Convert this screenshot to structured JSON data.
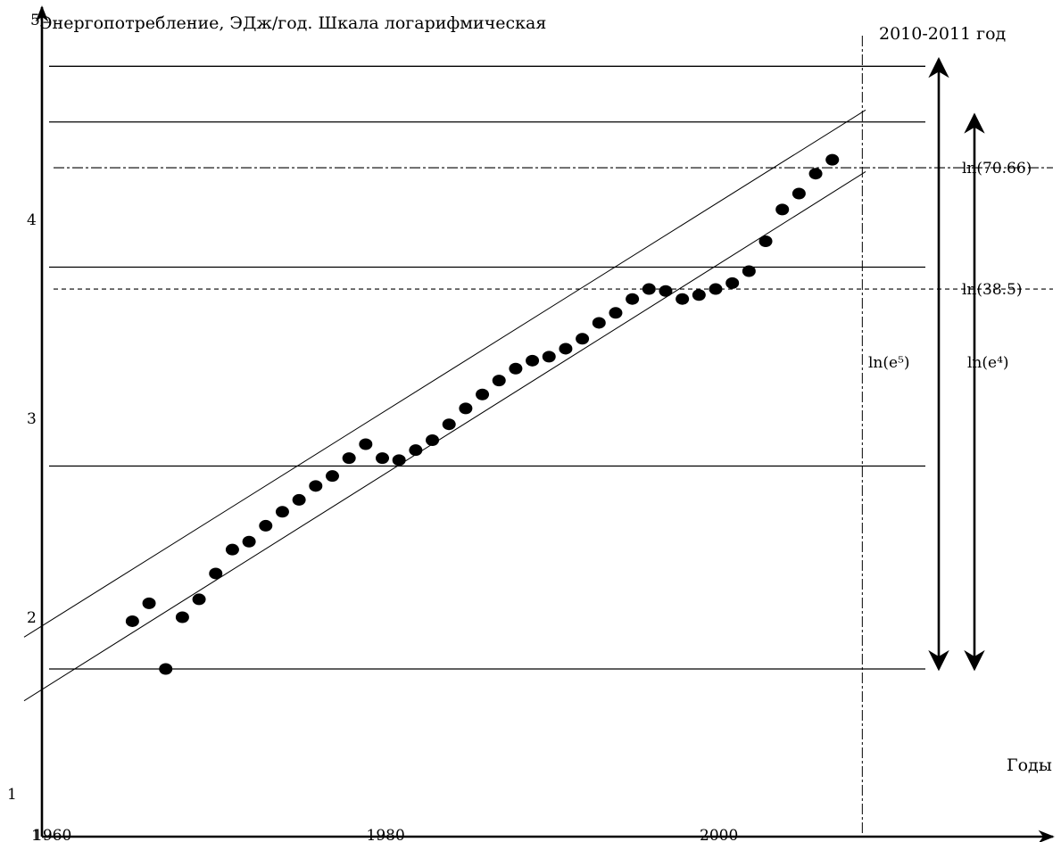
{
  "chart_data": {
    "type": "scatter",
    "title": "Энергопотребление, ЭДж/год. Шкала логарифмическая",
    "xlabel": "Годы",
    "ylabel": "",
    "xlim": [
      1960,
      2000
    ],
    "ylim": [
      1,
      5
    ],
    "yscale": "log",
    "grid": false,
    "x_ticks": [
      {
        "value": 1960,
        "label": "1960"
      },
      {
        "value": 1980,
        "label": "1980"
      },
      {
        "value": 2000,
        "label": "2000"
      }
    ],
    "y_ticks": [
      {
        "value": 1,
        "label": "1"
      },
      {
        "value": 2,
        "label": "2"
      },
      {
        "value": 3,
        "label": "3"
      },
      {
        "value": 4,
        "label": "4"
      },
      {
        "value": 5,
        "label": "5"
      }
    ],
    "y_axis_extra_label": "1",
    "series": [
      {
        "x": [
          1965,
          1966,
          1967,
          1968,
          1969,
          1970,
          1971,
          1972,
          1973,
          1974,
          1975,
          1976,
          1977,
          1978,
          1979,
          1980,
          1981,
          1982,
          1983,
          1984,
          1985,
          1986,
          1987,
          1988,
          1989,
          1990,
          1991,
          1992,
          1993,
          1994,
          1995,
          1996,
          1997,
          1998,
          1999,
          2000,
          2001,
          2002,
          2003,
          2004,
          2005,
          2006,
          2007
        ],
        "y": [
          1.98,
          2.07,
          1.74,
          2.0,
          2.09,
          2.22,
          2.34,
          2.38,
          2.46,
          2.53,
          2.59,
          2.66,
          2.71,
          2.8,
          2.87,
          2.8,
          2.79,
          2.84,
          2.89,
          2.97,
          3.05,
          3.12,
          3.19,
          3.25,
          3.29,
          3.31,
          3.35,
          3.4,
          3.48,
          3.53,
          3.6,
          3.65,
          3.64,
          3.6,
          3.62,
          3.65,
          3.68,
          3.74,
          3.89,
          4.05,
          4.13,
          4.23,
          4.3
        ]
      }
    ],
    "trend_band": {
      "upper": {
        "x": [
          1958.5,
          2009
        ],
        "y": [
          1.9,
          4.55
        ]
      },
      "lower": {
        "x": [
          1958.5,
          2009
        ],
        "y": [
          1.58,
          4.24
        ]
      }
    },
    "h_lines": [
      {
        "y": 1.74,
        "style": "solid"
      },
      {
        "y": 2.76,
        "style": "solid"
      },
      {
        "y": 3.76,
        "style": "solid"
      },
      {
        "y": 4.49,
        "style": "solid"
      },
      {
        "y": 4.77,
        "style": "solid"
      }
    ],
    "ref_lines": [
      {
        "y": 4.26,
        "style": "dashdot",
        "label": "ln(70.66)"
      },
      {
        "y": 3.65,
        "style": "dashed",
        "label": "ln(38.5)"
      }
    ],
    "v_line": {
      "x": 2008.8,
      "label": "2010-2011 год"
    },
    "ranges": [
      {
        "label": "ln(e⁵)",
        "from": 1.74,
        "to": 4.77
      },
      {
        "label": "ln(e⁴)",
        "from": 1.74,
        "to": 4.49
      }
    ]
  }
}
